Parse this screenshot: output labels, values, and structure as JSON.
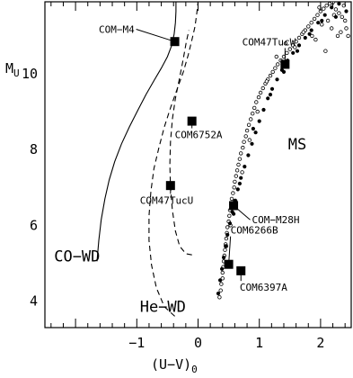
{
  "chart_data": {
    "type": "scatter",
    "xlabel_main": "(U−V)",
    "xlabel_sub": "0",
    "ylabel_main": "M",
    "ylabel_sub": "U",
    "xlim": [
      -2.5,
      2.5
    ],
    "ylim": [
      11.9,
      3.3
    ],
    "x_ticks": [
      -1,
      0,
      1,
      2
    ],
    "x_tick_labels": [
      "−1",
      "0",
      "1",
      "2"
    ],
    "y_ticks": [
      4,
      6,
      8,
      10
    ],
    "y_tick_labels": [
      "4",
      "6",
      "8",
      "10"
    ],
    "grid": false,
    "sequence_labels": [
      {
        "text": "CO−WD",
        "x": -2.35,
        "y": 5.05
      },
      {
        "text": "He−WD",
        "x": -0.95,
        "y": 3.72
      },
      {
        "text": "MS",
        "x": 1.47,
        "y": 8.0
      }
    ],
    "objects": [
      {
        "name": "COM6397A",
        "x": 0.7,
        "y": 4.8,
        "label_x": 0.68,
        "label_y": 4.27
      },
      {
        "name": "COM6266B",
        "x": 0.5,
        "y": 4.97,
        "label_x": 0.53,
        "label_y": 5.78
      },
      {
        "name": "COM−M28H",
        "x": 0.58,
        "y": 6.52,
        "label_x": 0.88,
        "label_y": 6.05
      },
      {
        "name": "COM47TucU",
        "x": -0.45,
        "y": 7.05,
        "label_x": -0.95,
        "label_y": 6.57
      },
      {
        "name": "COM6752A",
        "x": -0.1,
        "y": 8.75,
        "label_x": -0.38,
        "label_y": 8.3
      },
      {
        "name": "COM47TucW",
        "x": 1.42,
        "y": 10.25,
        "label_x": 0.72,
        "label_y": 10.75
      },
      {
        "name": "COM−M4",
        "x": -0.38,
        "y": 10.85,
        "label_x": -1.62,
        "label_y": 11.08
      }
    ],
    "series": [
      {
        "kind": "line",
        "style": "solid",
        "x": [
          -1.65,
          -1.62,
          -1.58,
          -1.52,
          -1.45,
          -1.36,
          -1.25,
          -1.12,
          -0.98,
          -0.85,
          -0.72,
          -0.6,
          -0.5,
          -0.43,
          -0.39,
          -0.37,
          -0.36,
          -0.36
        ],
        "y": [
          5.05,
          5.6,
          6.15,
          6.7,
          7.2,
          7.68,
          8.15,
          8.6,
          9.05,
          9.45,
          9.82,
          10.15,
          10.45,
          10.75,
          11.05,
          11.35,
          11.65,
          11.9
        ]
      },
      {
        "kind": "line",
        "style": "dashed",
        "x": [
          -0.38,
          -0.55,
          -0.68,
          -0.76,
          -0.8,
          -0.8,
          -0.77,
          -0.72,
          -0.64,
          -0.55,
          -0.45,
          -0.34,
          -0.24,
          -0.16,
          -0.1,
          -0.05,
          -0.02,
          0.0
        ],
        "y": [
          3.6,
          3.85,
          4.35,
          4.95,
          5.6,
          6.25,
          6.9,
          7.5,
          8.05,
          8.6,
          9.1,
          9.6,
          10.05,
          10.5,
          10.9,
          11.25,
          11.6,
          11.9
        ]
      },
      {
        "kind": "line",
        "style": "dashed",
        "x": [
          -0.1,
          -0.2,
          -0.3,
          -0.37,
          -0.42,
          -0.45,
          -0.46,
          -0.45,
          -0.42,
          -0.37,
          -0.3,
          -0.24,
          -0.19,
          -0.15
        ],
        "y": [
          5.22,
          5.25,
          5.45,
          5.85,
          6.4,
          7.0,
          7.6,
          8.2,
          8.8,
          9.35,
          9.9,
          10.4,
          10.85,
          11.15
        ]
      },
      {
        "kind": "points",
        "marker": "open-circle",
        "x": [
          0.35,
          0.37,
          0.38,
          0.4,
          0.4,
          0.41,
          0.42,
          0.43,
          0.44,
          0.45,
          0.46,
          0.47,
          0.48,
          0.5,
          0.51,
          0.52,
          0.54,
          0.55,
          0.57,
          0.59,
          0.6,
          0.62,
          0.64,
          0.66,
          0.68,
          0.7,
          0.73,
          0.75,
          0.78,
          0.8,
          0.83,
          0.86,
          0.89,
          0.92,
          0.95,
          0.99,
          1.02,
          1.06,
          1.1,
          1.14,
          1.18,
          1.22,
          1.26,
          1.3,
          1.35,
          1.4,
          1.45,
          1.5,
          1.55,
          1.6,
          1.65,
          1.7,
          1.75,
          1.8,
          1.85,
          1.9,
          1.95,
          2.0,
          2.05,
          2.1,
          2.15,
          2.2,
          2.25,
          2.3,
          2.35,
          2.4,
          0.46,
          0.53,
          0.61,
          0.72,
          0.84,
          0.97,
          1.12,
          1.28,
          1.43,
          1.58,
          1.72,
          1.86,
          2.02,
          2.18,
          2.33,
          2.45,
          1.92,
          2.08,
          2.28,
          2.38,
          2.22,
          1.98,
          2.42,
          2.12
        ],
        "y": [
          4.1,
          4.28,
          4.45,
          4.6,
          4.75,
          4.9,
          5.05,
          5.2,
          5.35,
          5.5,
          5.65,
          5.8,
          5.95,
          6.1,
          6.25,
          6.4,
          6.55,
          6.7,
          6.85,
          7.0,
          7.15,
          7.3,
          7.45,
          7.6,
          7.75,
          7.9,
          8.05,
          8.2,
          8.35,
          8.5,
          8.65,
          8.8,
          8.95,
          9.1,
          9.25,
          9.38,
          9.5,
          9.62,
          9.74,
          9.85,
          9.95,
          10.05,
          10.15,
          10.25,
          10.35,
          10.45,
          10.55,
          10.65,
          10.75,
          10.85,
          10.95,
          11.05,
          11.15,
          11.25,
          11.35,
          11.45,
          11.55,
          11.65,
          11.72,
          11.8,
          11.85,
          11.88,
          11.7,
          11.6,
          11.5,
          11.4,
          5.45,
          6.0,
          6.65,
          7.4,
          8.25,
          9.0,
          9.8,
          10.45,
          10.8,
          10.7,
          11.1,
          11.0,
          11.3,
          11.2,
          11.1,
          11.0,
          10.9,
          10.6,
          11.0,
          11.8,
          11.55,
          11.75,
          11.2,
          11.4
        ]
      },
      {
        "kind": "points",
        "marker": "filled-circle",
        "x": [
          0.33,
          0.36,
          0.39,
          0.42,
          0.45,
          0.48,
          0.52,
          0.56,
          0.6,
          0.65,
          0.7,
          0.76,
          0.82,
          0.88,
          0.94,
          1.0,
          1.07,
          1.14,
          1.21,
          1.29,
          1.37,
          1.46,
          1.55,
          1.65,
          1.75,
          1.85,
          1.96,
          2.07,
          2.18,
          2.3,
          2.42,
          0.58,
          0.68,
          0.9,
          1.18,
          1.4,
          1.62,
          1.82,
          2.02,
          2.25
        ],
        "y": [
          4.2,
          4.55,
          4.85,
          5.15,
          5.45,
          5.75,
          6.05,
          6.35,
          6.65,
          6.95,
          7.25,
          7.55,
          7.85,
          8.15,
          8.45,
          8.75,
          9.05,
          9.35,
          9.6,
          9.85,
          10.1,
          10.35,
          10.55,
          10.75,
          10.95,
          11.15,
          11.35,
          11.55,
          11.75,
          11.85,
          11.65,
          6.3,
          7.1,
          8.55,
          9.45,
          10.05,
          10.6,
          11.05,
          11.4,
          11.5
        ]
      }
    ]
  }
}
